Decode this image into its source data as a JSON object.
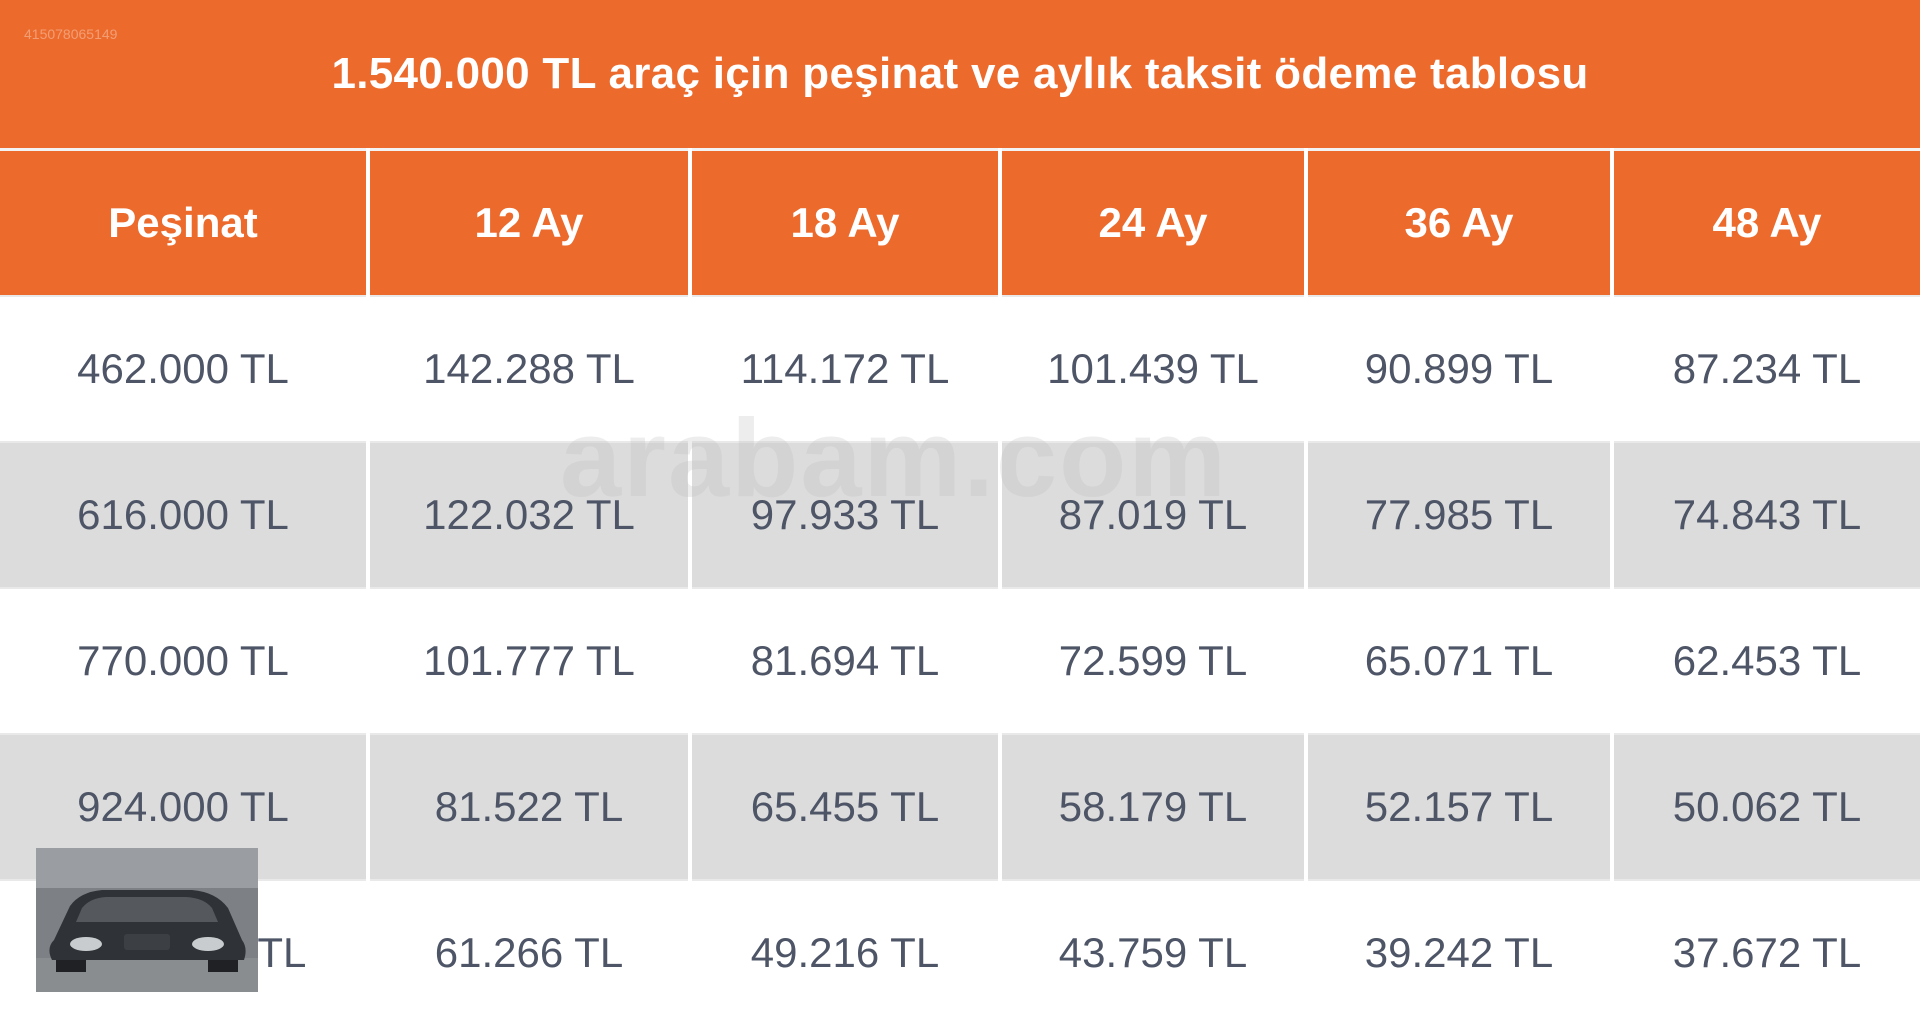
{
  "document": {
    "corner_id": "415078065149",
    "title": "1.540.000 TL araç için peşinat ve aylık taksit ödeme tablosu",
    "watermark": "arabam.com",
    "accent_color": "#ec6a2c",
    "zebra_color": "#dcdcdc"
  },
  "table": {
    "headers": [
      "Peşinat",
      "12 Ay",
      "18 Ay",
      "24 Ay",
      "36 Ay",
      "48 Ay"
    ],
    "rows": [
      [
        "462.000 TL",
        "142.288 TL",
        "114.172 TL",
        "101.439 TL",
        "90.899 TL",
        "87.234 TL"
      ],
      [
        "616.000 TL",
        "122.032 TL",
        "97.933 TL",
        "87.019 TL",
        "77.985 TL",
        "74.843 TL"
      ],
      [
        "770.000 TL",
        "101.777 TL",
        "81.694 TL",
        "72.599 TL",
        "65.071 TL",
        "62.453 TL"
      ],
      [
        "924.000 TL",
        "81.522 TL",
        "65.455 TL",
        "58.179 TL",
        "52.157 TL",
        "50.062 TL"
      ],
      [
        "1.078.000 TL",
        "61.266 TL",
        "49.216 TL",
        "43.759 TL",
        "39.242 TL",
        "37.672 TL"
      ]
    ]
  }
}
